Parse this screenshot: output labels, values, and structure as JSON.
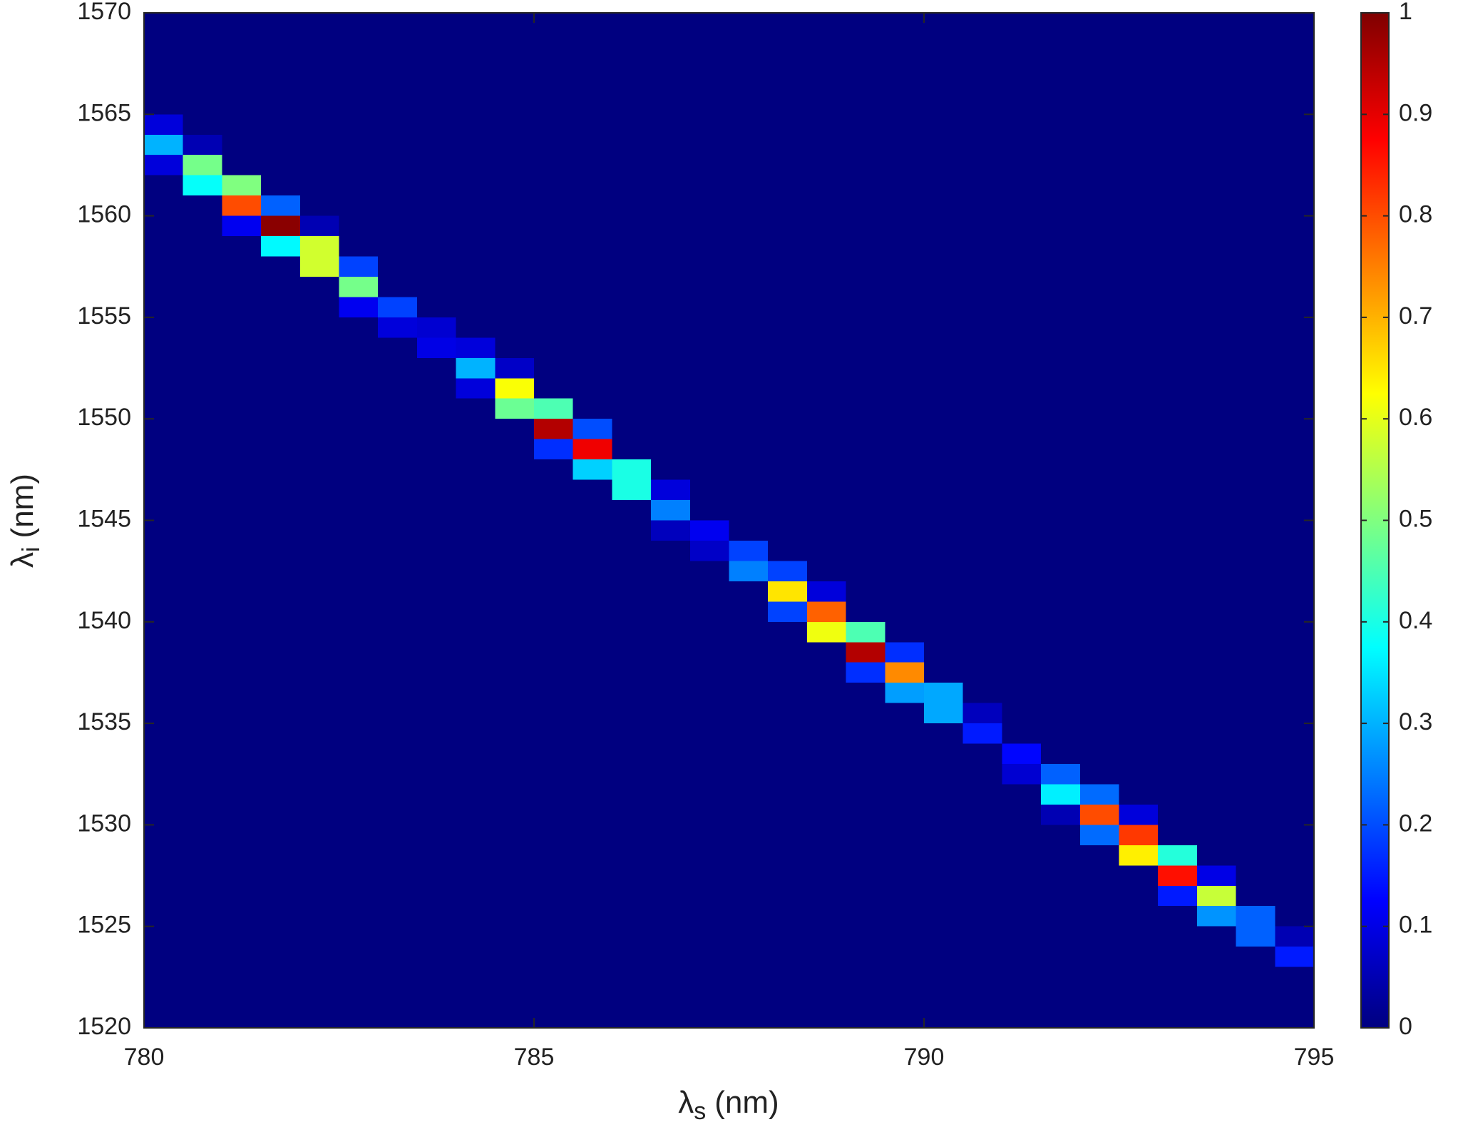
{
  "chart_data": {
    "type": "heatmap",
    "colormap": "jet",
    "xlabel": {
      "symbol": "λ",
      "subscript": "s",
      "unit": "(nm)"
    },
    "ylabel": {
      "symbol": "λ",
      "subscript": "i",
      "unit": "(nm)"
    },
    "xlim": [
      780,
      795
    ],
    "xticks": [
      780,
      785,
      790,
      795
    ],
    "ylim": [
      1520,
      1570
    ],
    "yticks": [
      1520,
      1525,
      1530,
      1535,
      1540,
      1545,
      1550,
      1555,
      1560,
      1565,
      1570
    ],
    "clim": [
      0,
      1
    ],
    "cticks": [
      0,
      0.1,
      0.2,
      0.3,
      0.4,
      0.5,
      0.6,
      0.7,
      0.8,
      0.9,
      1
    ],
    "x": [
      780.25,
      780.25,
      780.25,
      780.75,
      780.75,
      780.75,
      781.25,
      781.25,
      781.25,
      781.75,
      781.75,
      781.75,
      782.25,
      782.25,
      782.25,
      782.75,
      782.75,
      782.75,
      783.25,
      783.25,
      783.75,
      783.75,
      784.25,
      784.25,
      784.25,
      784.75,
      784.75,
      784.75,
      785.25,
      785.25,
      785.25,
      785.75,
      785.75,
      785.75,
      786.25,
      786.25,
      786.75,
      786.75,
      786.75,
      787.25,
      787.25,
      787.75,
      787.75,
      788.25,
      788.25,
      788.25,
      788.75,
      788.75,
      788.75,
      789.25,
      789.25,
      789.25,
      789.75,
      789.75,
      789.75,
      790.25,
      790.25,
      790.75,
      790.75,
      791.25,
      791.25,
      791.75,
      791.75,
      791.75,
      792.25,
      792.25,
      792.25,
      792.75,
      792.75,
      792.75,
      793.25,
      793.25,
      793.25,
      793.75,
      793.75,
      793.75,
      794.25,
      794.25,
      794.75,
      794.75
    ],
    "y": [
      1563.5,
      1562.5,
      1564.5,
      1562.5,
      1561.5,
      1563.5,
      1560.5,
      1561.5,
      1559.5,
      1559.5,
      1558.5,
      1560.5,
      1558.5,
      1557.5,
      1559.5,
      1556.5,
      1557.5,
      1555.5,
      1555.5,
      1554.5,
      1553.5,
      1554.5,
      1552.5,
      1551.5,
      1553.5,
      1551.5,
      1550.5,
      1552.5,
      1549.5,
      1550.5,
      1548.5,
      1548.5,
      1547.5,
      1549.5,
      1546.5,
      1547.5,
      1545.5,
      1544.5,
      1546.5,
      1544.5,
      1543.5,
      1542.5,
      1543.5,
      1541.5,
      1540.5,
      1542.5,
      1540.5,
      1539.5,
      1541.5,
      1538.5,
      1539.5,
      1537.5,
      1537.5,
      1536.5,
      1538.5,
      1535.5,
      1536.5,
      1534.5,
      1535.5,
      1533.5,
      1532.5,
      1531.5,
      1532.5,
      1530.5,
      1530.5,
      1529.5,
      1531.5,
      1529.5,
      1528.5,
      1530.5,
      1527.5,
      1528.5,
      1526.5,
      1526.5,
      1525.5,
      1527.5,
      1524.5,
      1525.5,
      1523.5,
      1524.5
    ],
    "values": [
      0.3,
      0.09,
      0.09,
      0.49,
      0.38,
      0.05,
      0.8,
      0.5,
      0.11,
      0.99,
      0.37,
      0.22,
      0.58,
      0.58,
      0.05,
      0.49,
      0.19,
      0.11,
      0.19,
      0.09,
      0.1,
      0.08,
      0.3,
      0.09,
      0.09,
      0.62,
      0.48,
      0.07,
      0.95,
      0.45,
      0.17,
      0.89,
      0.33,
      0.2,
      0.4,
      0.4,
      0.25,
      0.06,
      0.09,
      0.11,
      0.07,
      0.25,
      0.19,
      0.65,
      0.19,
      0.19,
      0.78,
      0.61,
      0.09,
      0.95,
      0.45,
      0.17,
      0.74,
      0.28,
      0.17,
      0.29,
      0.29,
      0.15,
      0.06,
      0.13,
      0.08,
      0.36,
      0.22,
      0.05,
      0.8,
      0.23,
      0.23,
      0.82,
      0.64,
      0.09,
      0.86,
      0.41,
      0.15,
      0.57,
      0.27,
      0.1,
      0.22,
      0.22,
      0.15,
      0.05
    ]
  }
}
